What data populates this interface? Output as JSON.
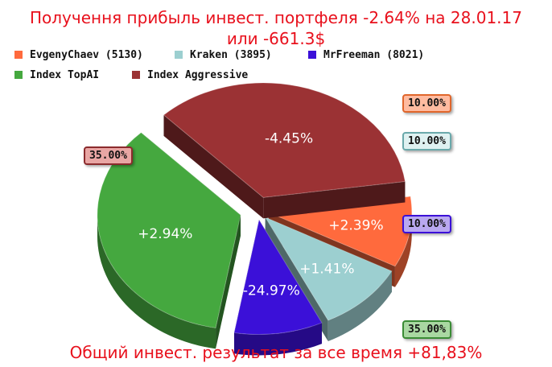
{
  "header": {
    "title_line1": "Получення прибыль инвест. портфеля -2.64% на 28.01.17",
    "title_line2": "или -661.3$"
  },
  "footer": {
    "text": "Общий инвест. результат за все время +81,83%"
  },
  "chart_data": {
    "type": "pie",
    "legend_position": "top",
    "slices": [
      {
        "name": "EvgenyChaev (5130)",
        "share": 10.0,
        "share_label": "10.00%",
        "return_label": "+2.39%",
        "color": "#ff6a3d",
        "box_color": "#ffbba0",
        "box_border": "#e0662c"
      },
      {
        "name": "Kraken (3895)",
        "share": 10.0,
        "share_label": "10.00%",
        "return_label": "+1.41%",
        "color": "#9ccfd0",
        "box_color": "#dff1f1",
        "box_border": "#6aa9ab"
      },
      {
        "name": "MrFreeman (8021)",
        "share": 10.0,
        "share_label": "10.00%",
        "return_label": "-24.97%",
        "color": "#3b10d8",
        "box_color": "#b9a8f0",
        "box_border": "#3b10d8"
      },
      {
        "name": "Index TopAI",
        "share": 35.0,
        "share_label": "35.00%",
        "return_label": "+2.94%",
        "color": "#45a83f",
        "box_color": "#a9d8a2",
        "box_border": "#3a8c35"
      },
      {
        "name": "Index Aggressive",
        "share": 35.0,
        "share_label": "35.00%",
        "return_label": "-4.45%",
        "color": "#9b3234",
        "box_color": "#e9a6a4",
        "box_border": "#8b2b2d"
      }
    ]
  }
}
